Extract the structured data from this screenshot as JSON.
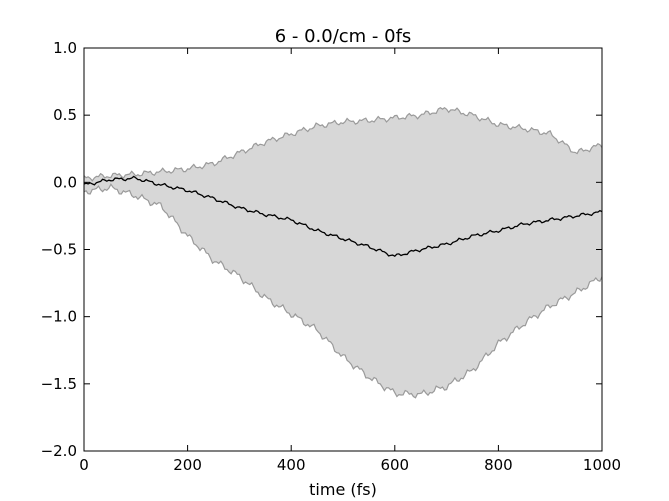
{
  "chart_data": {
    "type": "line",
    "title": "6 - 0.0/cm - 0fs",
    "xlabel": "time (fs)",
    "ylabel": "",
    "xlim": [
      0,
      1000
    ],
    "ylim": [
      -2.0,
      1.0
    ],
    "xticks": [
      0,
      200,
      400,
      600,
      800,
      1000
    ],
    "xtick_labels": [
      "0",
      "200",
      "400",
      "600",
      "800",
      "1000"
    ],
    "yticks": [
      1.0,
      0.5,
      0.0,
      -0.5,
      -1.0,
      -1.5,
      -2.0
    ],
    "ytick_labels": [
      "1.0",
      "0.5",
      "0.0",
      "−0.5",
      "−1.0",
      "−1.5",
      "−2.0"
    ],
    "grid": false,
    "colors": {
      "mean_line": "#000000",
      "band_fill": "#d7d7d7",
      "band_edge": "#9a9a9a"
    },
    "series": [
      {
        "role": "mean",
        "x": [
          0,
          50,
          100,
          150,
          200,
          250,
          300,
          350,
          400,
          450,
          500,
          550,
          600,
          650,
          700,
          750,
          800,
          850,
          900,
          950,
          1000
        ],
        "values": [
          -0.02,
          0.02,
          0.03,
          -0.02,
          -0.06,
          -0.12,
          -0.19,
          -0.24,
          -0.28,
          -0.36,
          -0.42,
          -0.48,
          -0.55,
          -0.5,
          -0.46,
          -0.4,
          -0.36,
          -0.31,
          -0.28,
          -0.25,
          -0.22
        ]
      },
      {
        "role": "upper-bound",
        "x": [
          0,
          50,
          100,
          150,
          200,
          250,
          300,
          350,
          400,
          450,
          500,
          550,
          600,
          650,
          700,
          750,
          800,
          850,
          900,
          950,
          1000
        ],
        "values": [
          0.03,
          0.05,
          0.06,
          0.08,
          0.1,
          0.14,
          0.22,
          0.3,
          0.36,
          0.42,
          0.45,
          0.46,
          0.48,
          0.5,
          0.55,
          0.5,
          0.43,
          0.4,
          0.36,
          0.22,
          0.28
        ]
      },
      {
        "role": "lower-bound",
        "x": [
          0,
          50,
          100,
          150,
          200,
          250,
          300,
          350,
          400,
          450,
          500,
          550,
          600,
          650,
          700,
          750,
          800,
          850,
          900,
          950,
          1000
        ],
        "values": [
          -0.07,
          -0.04,
          -0.1,
          -0.18,
          -0.4,
          -0.58,
          -0.7,
          -0.86,
          -0.98,
          -1.1,
          -1.3,
          -1.45,
          -1.57,
          -1.58,
          -1.52,
          -1.4,
          -1.2,
          -1.05,
          -0.92,
          -0.82,
          -0.7
        ]
      }
    ]
  }
}
